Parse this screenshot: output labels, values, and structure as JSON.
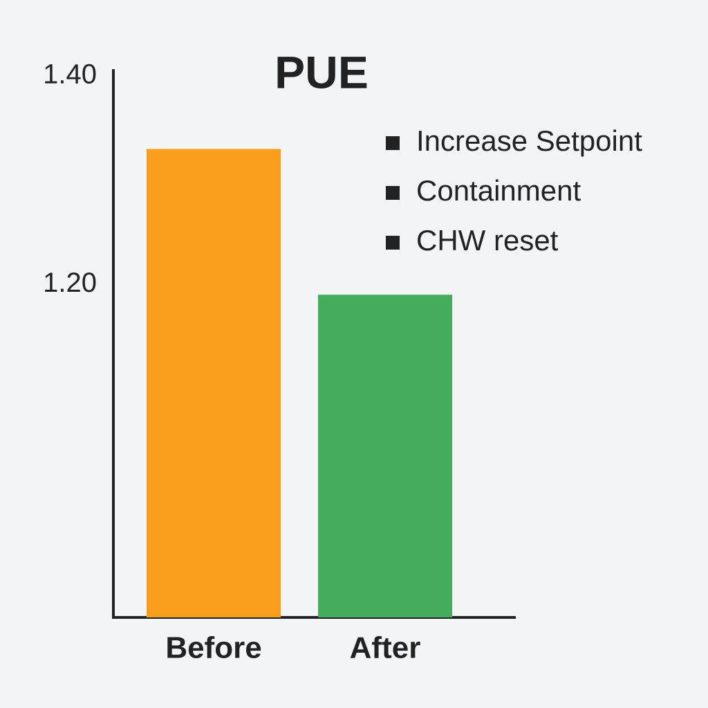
{
  "chart_data": {
    "type": "bar",
    "title": "PUE",
    "categories": [
      "Before",
      "After"
    ],
    "values": [
      1.33,
      1.19
    ],
    "colors": [
      "#f99d1c",
      "#43ad5b"
    ],
    "ylim": [
      0.88,
      1.41
    ],
    "yticks": [
      {
        "value": 1.2,
        "label": "1.20"
      },
      {
        "value": 1.4,
        "label": "1.40"
      }
    ],
    "grid": false,
    "annotations": [
      "Increase Setpoint",
      "Containment",
      "CHW reset"
    ],
    "annotation_marker_color": "#222222"
  }
}
